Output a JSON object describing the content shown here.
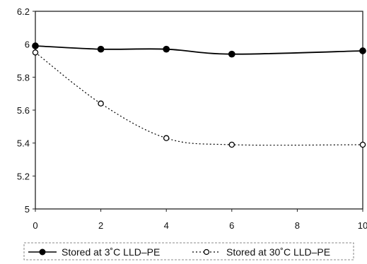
{
  "chart_data": {
    "type": "line",
    "title": "",
    "xlabel": "",
    "ylabel": "",
    "xlim": [
      0,
      10
    ],
    "ylim": [
      5,
      6.2
    ],
    "x_ticks": [
      "0",
      "2",
      "4",
      "6",
      "8",
      "10"
    ],
    "y_ticks": [
      "5",
      "5.2",
      "5.4",
      "5.6",
      "5.8",
      "6",
      "6.2"
    ],
    "grid": false,
    "legend_position": "bottom",
    "series": [
      {
        "name": "Stored at 3˚C LLD–PE",
        "x": [
          0,
          2,
          4,
          6,
          10
        ],
        "y": [
          5.99,
          5.97,
          5.97,
          5.94,
          5.96
        ],
        "line": "solid",
        "marker": "filled-circle",
        "color": "#000000"
      },
      {
        "name": "Stored at 30˚C LLD–PE",
        "x": [
          0,
          2,
          4,
          6,
          10
        ],
        "y": [
          5.95,
          5.64,
          5.43,
          5.39,
          5.39
        ],
        "line": "dotted",
        "marker": "open-circle",
        "color": "#000000"
      }
    ]
  }
}
